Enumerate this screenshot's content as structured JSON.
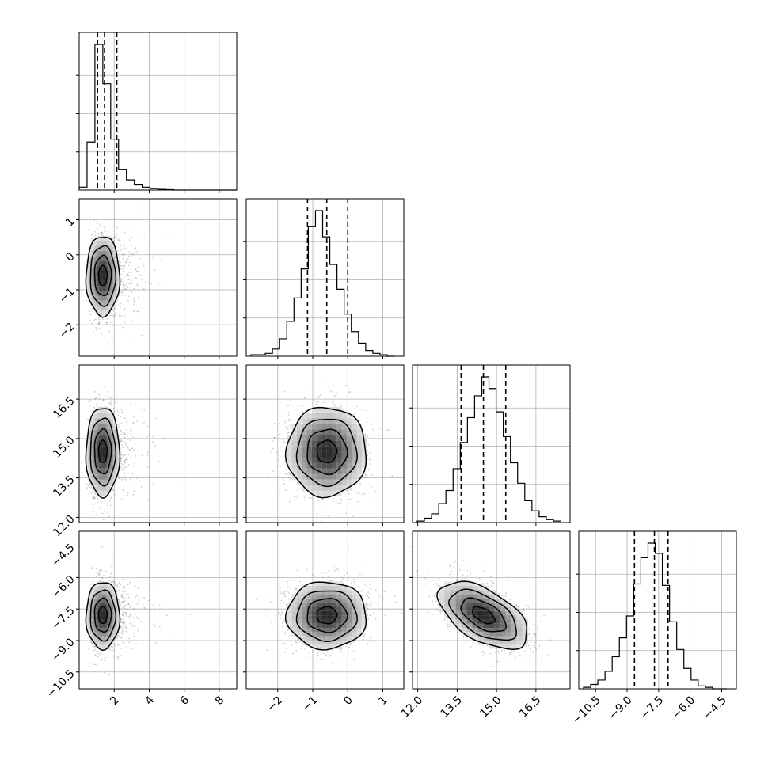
{
  "chart_data": {
    "type": "corner",
    "grid": true,
    "parameters": [
      {
        "range": [
          0.0,
          9.0
        ],
        "ticks": [
          2,
          4,
          6,
          8
        ],
        "tick_labels": [
          "2",
          "4",
          "6",
          "8"
        ],
        "quantiles": [
          1.05,
          1.45,
          2.15
        ],
        "mean": 1.5,
        "sd": 0.6,
        "skew": 0.6
      },
      {
        "range": [
          -2.9,
          1.6
        ],
        "ticks": [
          -2,
          -1,
          0,
          1
        ],
        "tick_labels": [
          "−2",
          "−1",
          "0",
          "1"
        ],
        "quantiles": [
          -1.15,
          -0.6,
          0.0
        ],
        "mean": -0.6,
        "sd": 0.57
      },
      {
        "range": [
          11.8,
          17.8
        ],
        "ticks": [
          12.0,
          13.5,
          15.0,
          16.5
        ],
        "tick_labels": [
          "12.0",
          "13.5",
          "15.0",
          "16.5"
        ],
        "quantiles": [
          13.65,
          14.5,
          15.35
        ],
        "mean": 14.5,
        "sd": 0.85
      },
      {
        "range": [
          -11.3,
          -3.8
        ],
        "ticks": [
          -10.5,
          -9.0,
          -7.5,
          -6.0,
          -4.5
        ],
        "tick_labels": [
          "−10.5",
          "−9.0",
          "−7.5",
          "−6.0",
          "−4.5"
        ],
        "quantiles": [
          -8.65,
          -7.7,
          -7.05
        ],
        "mean": -7.8,
        "sd": 0.8
      }
    ],
    "histograms": [
      [
        0.02,
        0.33,
        1.0,
        0.73,
        0.35,
        0.14,
        0.07,
        0.035,
        0.02,
        0.01,
        0.005,
        0.003,
        0.0,
        0.0,
        0.0,
        0.0,
        0.0,
        0.0,
        0.0,
        0.0
      ],
      [
        0.01,
        0.01,
        0.02,
        0.05,
        0.12,
        0.24,
        0.4,
        0.6,
        0.89,
        1.0,
        0.82,
        0.63,
        0.46,
        0.29,
        0.17,
        0.09,
        0.04,
        0.02,
        0.01,
        0.0
      ],
      [
        0.01,
        0.03,
        0.06,
        0.13,
        0.22,
        0.37,
        0.55,
        0.72,
        0.87,
        1.0,
        0.92,
        0.76,
        0.59,
        0.41,
        0.27,
        0.15,
        0.08,
        0.04,
        0.02,
        0.01
      ],
      [
        0.01,
        0.03,
        0.06,
        0.12,
        0.22,
        0.35,
        0.5,
        0.72,
        0.9,
        1.0,
        0.93,
        0.71,
        0.46,
        0.27,
        0.14,
        0.06,
        0.02,
        0.01,
        0.0,
        0.0
      ]
    ],
    "correlations": [
      {
        "pair": [
          0,
          1
        ],
        "rho": 0.0
      },
      {
        "pair": [
          0,
          2
        ],
        "rho": 0.0
      },
      {
        "pair": [
          0,
          3
        ],
        "rho": 0.0
      },
      {
        "pair": [
          1,
          2
        ],
        "rho": 0.0
      },
      {
        "pair": [
          1,
          3
        ],
        "rho": 0.0
      },
      {
        "pair": [
          2,
          3
        ],
        "rho": -0.55
      }
    ]
  }
}
